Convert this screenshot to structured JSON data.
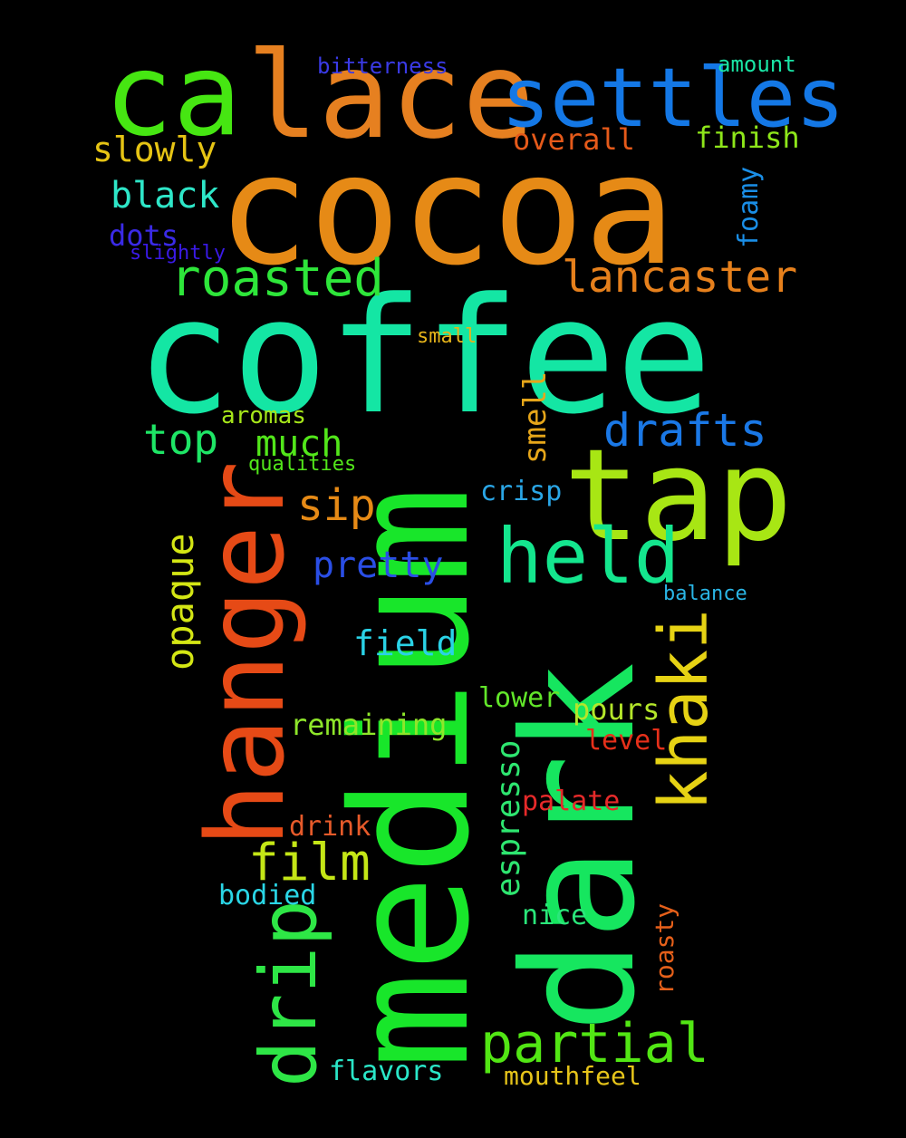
{
  "words": [
    {
      "text": "cocoa",
      "color": "#e68a16",
      "rotated": false
    },
    {
      "text": "coffee",
      "color": "#14e6a4",
      "rotated": false
    },
    {
      "text": "medium",
      "color": "#18e62a",
      "rotated": true
    },
    {
      "text": "dark",
      "color": "#16e65f",
      "rotated": true
    },
    {
      "text": "tap",
      "color": "#a8e614",
      "rotated": false
    },
    {
      "text": "hanger",
      "color": "#e64a16",
      "rotated": true
    },
    {
      "text": "lace",
      "color": "#e68020",
      "rotated": false
    },
    {
      "text": "ca",
      "color": "#46e612",
      "rotated": false
    },
    {
      "text": "settles",
      "color": "#1478e6",
      "rotated": false
    },
    {
      "text": "held",
      "color": "#14e68e",
      "rotated": false
    },
    {
      "text": "khaki",
      "color": "#e6d214",
      "rotated": true
    },
    {
      "text": "drip",
      "color": "#2ee646",
      "rotated": true
    },
    {
      "text": "partial",
      "color": "#52e614",
      "rotated": false
    },
    {
      "text": "roasted",
      "color": "#2ee63a",
      "rotated": false
    },
    {
      "text": "lancaster",
      "color": "#e6801c",
      "rotated": false
    },
    {
      "text": "drafts",
      "color": "#1a78e6",
      "rotated": false
    },
    {
      "text": "film",
      "color": "#c4e616",
      "rotated": false
    },
    {
      "text": "sip",
      "color": "#e68a16",
      "rotated": false
    },
    {
      "text": "top",
      "color": "#1ee666",
      "rotated": false
    },
    {
      "text": "much",
      "color": "#52e61a",
      "rotated": false
    },
    {
      "text": "opaque",
      "color": "#d4e614",
      "rotated": true
    },
    {
      "text": "black",
      "color": "#2ee6c8",
      "rotated": false
    },
    {
      "text": "slowly",
      "color": "#e6c414",
      "rotated": false
    },
    {
      "text": "pretty",
      "color": "#2a4ee6",
      "rotated": false
    },
    {
      "text": "field",
      "color": "#2ad2e6",
      "rotated": false
    },
    {
      "text": "espresso",
      "color": "#2ee670",
      "rotated": true
    },
    {
      "text": "smell",
      "color": "#e6a61a",
      "rotated": true
    },
    {
      "text": "overall",
      "color": "#e65a1a",
      "rotated": false
    },
    {
      "text": "finish",
      "color": "#8ee61a",
      "rotated": false
    },
    {
      "text": "foamy",
      "color": "#1a8ee6",
      "rotated": true
    },
    {
      "text": "dots",
      "color": "#3a2ae6",
      "rotated": false
    },
    {
      "text": "remaining",
      "color": "#8ee62a",
      "rotated": false
    },
    {
      "text": "pours",
      "color": "#b4e62a",
      "rotated": false
    },
    {
      "text": "crisp",
      "color": "#2aa6e6",
      "rotated": false
    },
    {
      "text": "lower",
      "color": "#62e62a",
      "rotated": false
    },
    {
      "text": "level",
      "color": "#e6301a",
      "rotated": false
    },
    {
      "text": "palate",
      "color": "#e62a2a",
      "rotated": false
    },
    {
      "text": "drink",
      "color": "#e65a2a",
      "rotated": false
    },
    {
      "text": "bodied",
      "color": "#2ad6e6",
      "rotated": false
    },
    {
      "text": "nice",
      "color": "#2ae67a",
      "rotated": false
    },
    {
      "text": "roasty",
      "color": "#e6601a",
      "rotated": true
    },
    {
      "text": "flavors",
      "color": "#2ae6c8",
      "rotated": false
    },
    {
      "text": "mouthfeel",
      "color": "#e6c41a",
      "rotated": false
    },
    {
      "text": "aromas",
      "color": "#a6e61a",
      "rotated": false
    },
    {
      "text": "qualities",
      "color": "#52e61a",
      "rotated": false
    },
    {
      "text": "bitterness",
      "color": "#3a3ae6",
      "rotated": false
    },
    {
      "text": "amount",
      "color": "#1ae6a6",
      "rotated": false
    },
    {
      "text": "slightly",
      "color": "#3a1ae6",
      "rotated": false
    },
    {
      "text": "small",
      "color": "#e6b41a",
      "rotated": false
    },
    {
      "text": "balance",
      "color": "#2ab6e6",
      "rotated": false
    }
  ]
}
